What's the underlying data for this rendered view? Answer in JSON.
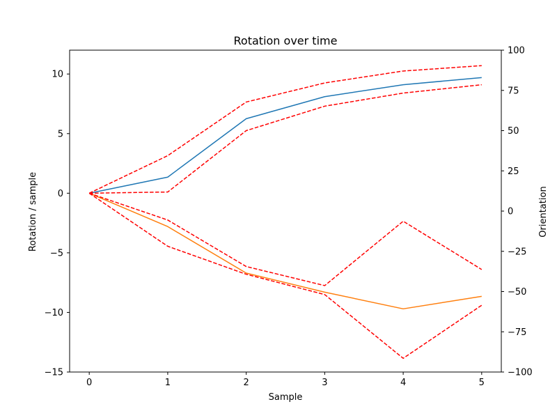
{
  "chart_data": {
    "type": "line",
    "title": "Rotation over time",
    "xlabel": "Sample",
    "ylabel": "Rotation / sample",
    "ylabel_right": "Orientation",
    "x": [
      0,
      1,
      2,
      3,
      4,
      5
    ],
    "xlim": [
      -0.25,
      5.25
    ],
    "ylim": [
      -15,
      12
    ],
    "ylim_right": [
      -100,
      100
    ],
    "xticks": [
      0,
      1,
      2,
      3,
      4,
      5
    ],
    "yticks": [
      -15,
      -10,
      -5,
      0,
      5,
      10
    ],
    "yticks_right": [
      -100,
      -75,
      -50,
      -25,
      0,
      25,
      50,
      75,
      100
    ],
    "grid": false,
    "series": [
      {
        "values": [
          0,
          1.35,
          6.25,
          8.1,
          9.1,
          9.7
        ],
        "color": "#1f77b4",
        "style": "solid",
        "axis": "left"
      },
      {
        "values": [
          0,
          -2.8,
          -6.7,
          -8.3,
          -9.7,
          -8.65
        ],
        "color": "#ff7f0e",
        "style": "solid",
        "axis": "left"
      },
      {
        "values": [
          0,
          3.15,
          7.65,
          9.25,
          10.25,
          10.7
        ],
        "color": "#ff0000",
        "style": "dashed",
        "axis": "left"
      },
      {
        "values": [
          0,
          0.1,
          5.25,
          7.3,
          8.4,
          9.1
        ],
        "color": "#ff0000",
        "style": "dashed",
        "axis": "left"
      },
      {
        "values": [
          0,
          -2.25,
          -6.15,
          -7.75,
          -2.35,
          -6.4
        ],
        "color": "#ff0000",
        "style": "dashed",
        "axis": "left"
      },
      {
        "values": [
          0,
          -4.45,
          -6.8,
          -8.5,
          -13.85,
          -9.4
        ],
        "color": "#ff0000",
        "style": "dashed",
        "axis": "left"
      }
    ]
  }
}
